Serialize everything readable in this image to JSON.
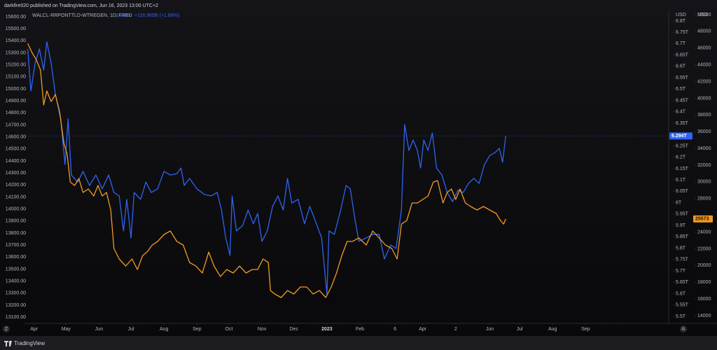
{
  "header": {
    "publisher": "darkfire020 published on TradingView.com, Jun 16, 2023 13:00 UTC+2",
    "footer_brand": "TradingView",
    "buttons": [
      "Z",
      "A"
    ]
  },
  "chart_data": {
    "type": "line",
    "legend_symbol": "WALCL-RRPONTTLD-WTREGEN, 1D, FRED",
    "legend_last": "6.294T",
    "legend_change": "+116.965B (+1.89%)",
    "y2_unit": "USD",
    "y3_unit": "USD",
    "xlim": [
      -9,
      596
    ],
    "xticks": [
      {
        "value": 0,
        "label": "Apr"
      },
      {
        "value": 30,
        "label": "May"
      },
      {
        "value": 61,
        "label": "Jun"
      },
      {
        "value": 91,
        "label": "Jul"
      },
      {
        "value": 122,
        "label": "Aug"
      },
      {
        "value": 153,
        "label": "Sep"
      },
      {
        "value": 183,
        "label": "Oct"
      },
      {
        "value": 214,
        "label": "Nov"
      },
      {
        "value": 244,
        "label": "Dec"
      },
      {
        "value": 275,
        "label": "2023"
      },
      {
        "value": 306,
        "label": "Feb"
      },
      {
        "value": 339,
        "label": "6"
      },
      {
        "value": 365,
        "label": "Apr"
      },
      {
        "value": 396,
        "label": "2"
      },
      {
        "value": 428,
        "label": "Jun"
      },
      {
        "value": 456,
        "label": "Jul"
      },
      {
        "value": 487,
        "label": "Aug"
      },
      {
        "value": 518,
        "label": "Sep"
      }
    ],
    "ylim": [
      13048,
      15652
    ],
    "yticks": [
      {
        "value": 13100,
        "label": "13100.00"
      },
      {
        "value": 13200,
        "label": "13200.00"
      },
      {
        "value": 13300,
        "label": "13300.00"
      },
      {
        "value": 13400,
        "label": "13400.00"
      },
      {
        "value": 13500,
        "label": "13500.00"
      },
      {
        "value": 13600,
        "label": "13600.00"
      },
      {
        "value": 13700,
        "label": "13700.00"
      },
      {
        "value": 13800,
        "label": "13800.00"
      },
      {
        "value": 13900,
        "label": "13900.00"
      },
      {
        "value": 14000,
        "label": "14000.00"
      },
      {
        "value": 14100,
        "label": "14100.00"
      },
      {
        "value": 14200,
        "label": "14200.00"
      },
      {
        "value": 14300,
        "label": "14300.00"
      },
      {
        "value": 14400,
        "label": "14400.00"
      },
      {
        "value": 14500,
        "label": "14500.00"
      },
      {
        "value": 14600,
        "label": "14600.00"
      },
      {
        "value": 14700,
        "label": "14700.00"
      },
      {
        "value": 14800,
        "label": "14800.00"
      },
      {
        "value": 14900,
        "label": "14900.00"
      },
      {
        "value": 15000,
        "label": "15000.00"
      },
      {
        "value": 15100,
        "label": "15100.00"
      },
      {
        "value": 15200,
        "label": "15200.00"
      },
      {
        "value": 15300,
        "label": "15300.00"
      },
      {
        "value": 15400,
        "label": "15400.00"
      },
      {
        "value": 15500,
        "label": "15500.00"
      },
      {
        "value": 15600,
        "label": "15600.00"
      }
    ],
    "y2lim": [
      5.469,
      6.846
    ],
    "y2ticks": [
      {
        "value": 5.5,
        "label": "5.5T"
      },
      {
        "value": 5.55,
        "label": "5.55T"
      },
      {
        "value": 5.6,
        "label": "5.6T"
      },
      {
        "value": 5.65,
        "label": "5.65T"
      },
      {
        "value": 5.7,
        "label": "5.7T"
      },
      {
        "value": 5.75,
        "label": "5.75T"
      },
      {
        "value": 5.8,
        "label": "5.8T"
      },
      {
        "value": 5.85,
        "label": "5.85T"
      },
      {
        "value": 5.9,
        "label": "5.9T"
      },
      {
        "value": 5.95,
        "label": "5.95T"
      },
      {
        "value": 6,
        "label": "6T"
      },
      {
        "value": 6.05,
        "label": "6.05T"
      },
      {
        "value": 6.1,
        "label": "6.1T"
      },
      {
        "value": 6.15,
        "label": "6.15T"
      },
      {
        "value": 6.2,
        "label": "6.2T"
      },
      {
        "value": 6.25,
        "label": "6.25T"
      },
      {
        "value": 6.35,
        "label": "6.35T"
      },
      {
        "value": 6.4,
        "label": "6.4T"
      },
      {
        "value": 6.45,
        "label": "6.45T"
      },
      {
        "value": 6.5,
        "label": "6.5T"
      },
      {
        "value": 6.55,
        "label": "6.55T"
      },
      {
        "value": 6.6,
        "label": "6.6T"
      },
      {
        "value": 6.65,
        "label": "6.65T"
      },
      {
        "value": 6.7,
        "label": "6.7T"
      },
      {
        "value": 6.75,
        "label": "6.75T"
      },
      {
        "value": 6.8,
        "label": "6.8T"
      }
    ],
    "y3lim": [
      13080,
      50502
    ],
    "y3ticks": [
      14000,
      16000,
      18000,
      20000,
      22000,
      24000,
      28000,
      30000,
      32000,
      34000,
      36000,
      38000,
      40000,
      42000,
      44000,
      46000,
      48000,
      50000
    ],
    "series": [
      {
        "name": "WALCL-RRPONTTLD-WTREGEN, 1D, FRED",
        "color": "#2f63f0",
        "axis": "y2",
        "price_label": "6.294T",
        "x": [
          -6,
          -3,
          1,
          5,
          9,
          12,
          16,
          20,
          25,
          29,
          32,
          35,
          41,
          46,
          52,
          58,
          64,
          70,
          75,
          80,
          84,
          87,
          91,
          94,
          100,
          105,
          110,
          116,
          122,
          128,
          134,
          138,
          141,
          146,
          153,
          160,
          166,
          172,
          176,
          180,
          184,
          186,
          190,
          196,
          201,
          206,
          210,
          214,
          219,
          224,
          229,
          234,
          238,
          242,
          248,
          254,
          259,
          264,
          270,
          275,
          277,
          282,
          288,
          293,
          297,
          301,
          305,
          312,
          318,
          324,
          329,
          335,
          340,
          345,
          348,
          352,
          356,
          360,
          363,
          366,
          370,
          374,
          378,
          383,
          388,
          393,
          398,
          403,
          408,
          413,
          418,
          423,
          428,
          433,
          437,
          440,
          443
        ],
        "values": [
          6.677,
          6.492,
          6.615,
          6.677,
          6.584,
          6.708,
          6.615,
          6.477,
          6.369,
          6.168,
          6.369,
          6.122,
          6.091,
          6.138,
          6.076,
          6.122,
          6.061,
          6.122,
          6.045,
          6.03,
          5.876,
          6.015,
          5.845,
          6.045,
          6.015,
          6.091,
          6.045,
          6.061,
          6.138,
          6.122,
          6.128,
          6.153,
          6.076,
          6.107,
          6.061,
          6.036,
          6.03,
          6.045,
          5.968,
          5.845,
          5.768,
          6.03,
          5.876,
          5.9,
          5.968,
          5.907,
          5.953,
          5.83,
          5.876,
          5.984,
          6.03,
          5.968,
          6.107,
          5.999,
          6.015,
          5.907,
          5.984,
          5.922,
          5.845,
          5.598,
          5.876,
          5.861,
          5.968,
          6.076,
          6.061,
          5.937,
          5.83,
          5.845,
          5.861,
          5.861,
          5.753,
          5.814,
          5.799,
          5.968,
          6.344,
          6.23,
          6.276,
          6.23,
          6.153,
          6.276,
          6.23,
          6.307,
          6.153,
          6.122,
          6.045,
          6.005,
          6.055,
          6.045,
          6.085,
          6.107,
          6.085,
          6.168,
          6.208,
          6.221,
          6.239,
          6.178,
          6.294
        ]
      },
      {
        "color": "#f39a1e",
        "axis": "y3",
        "x": [
          -6,
          -2,
          2,
          6,
          9,
          12,
          16,
          20,
          24,
          28,
          31,
          34,
          38,
          42,
          46,
          51,
          56,
          60,
          64,
          68,
          72,
          75,
          80,
          86,
          92,
          97,
          102,
          106,
          111,
          116,
          122,
          128,
          134,
          140,
          146,
          152,
          158,
          164,
          169,
          175,
          181,
          187,
          193,
          199,
          205,
          210,
          215,
          220,
          222,
          226,
          232,
          238,
          244,
          250,
          256,
          262,
          268,
          274,
          279,
          284,
          289,
          294,
          299,
          305,
          312,
          318,
          324,
          330,
          336,
          341,
          345,
          350,
          355,
          360,
          365,
          370,
          375,
          379,
          384,
          388,
          392,
          396,
          400,
          405,
          410,
          416,
          422,
          428,
          434,
          438,
          441,
          443
        ],
        "values": [
          46570,
          45480,
          44640,
          43390,
          39200,
          40880,
          39620,
          40460,
          38360,
          34600,
          33340,
          29990,
          29570,
          30410,
          28740,
          29150,
          28320,
          29570,
          28320,
          28740,
          26640,
          22040,
          20780,
          19940,
          20780,
          19530,
          21200,
          21620,
          22460,
          22880,
          23710,
          24130,
          22880,
          22460,
          20360,
          19940,
          19110,
          21620,
          19940,
          18690,
          19530,
          19110,
          19940,
          19110,
          19530,
          19530,
          20780,
          20360,
          17010,
          16600,
          16180,
          17010,
          16600,
          17430,
          17430,
          16600,
          17010,
          16180,
          17430,
          19110,
          21200,
          22880,
          22880,
          23290,
          22460,
          24130,
          23290,
          22460,
          22040,
          20780,
          24960,
          25390,
          27480,
          27480,
          27900,
          28320,
          29990,
          30160,
          27480,
          28740,
          29150,
          27900,
          29150,
          27480,
          27060,
          26640,
          27060,
          26640,
          26220,
          25390,
          24960,
          25573
        ]
      }
    ]
  }
}
